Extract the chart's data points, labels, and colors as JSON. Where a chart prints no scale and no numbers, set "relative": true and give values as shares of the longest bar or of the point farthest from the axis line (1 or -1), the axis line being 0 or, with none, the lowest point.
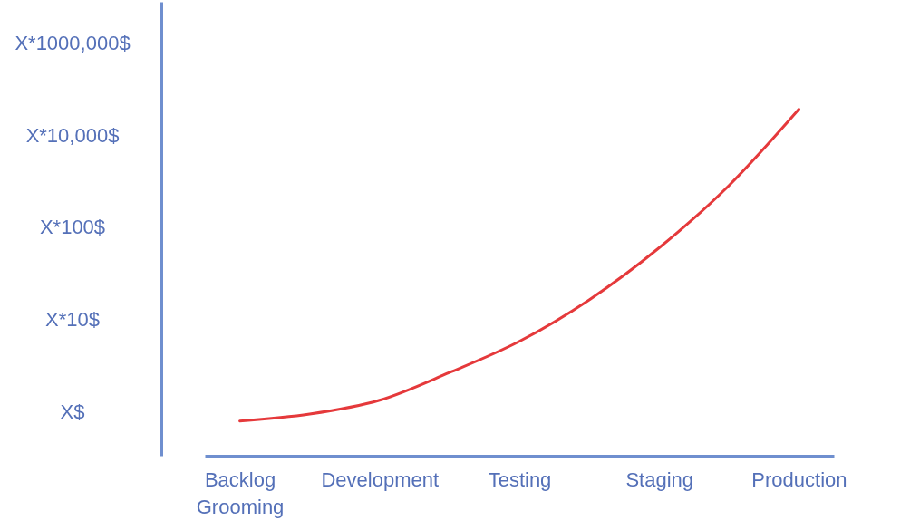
{
  "chart_data": {
    "type": "line",
    "relative": true,
    "categories": [
      "Backlog\nGrooming",
      null,
      "Development",
      null,
      "Testing",
      null,
      "Staging",
      null,
      "Production"
    ],
    "series": [
      {
        "color": "#e5393b",
        "values": [
          0.1,
          0.12,
          0.16,
          0.24,
          0.33,
          0.45,
          0.6,
          0.78,
          1
        ]
      }
    ],
    "annotations": [
      "X*1000,000$",
      "X*10,000$",
      "X*100$",
      "X*10$",
      "X$"
    ],
    "grid": false,
    "marker": "none",
    "line_style": "solid"
  }
}
